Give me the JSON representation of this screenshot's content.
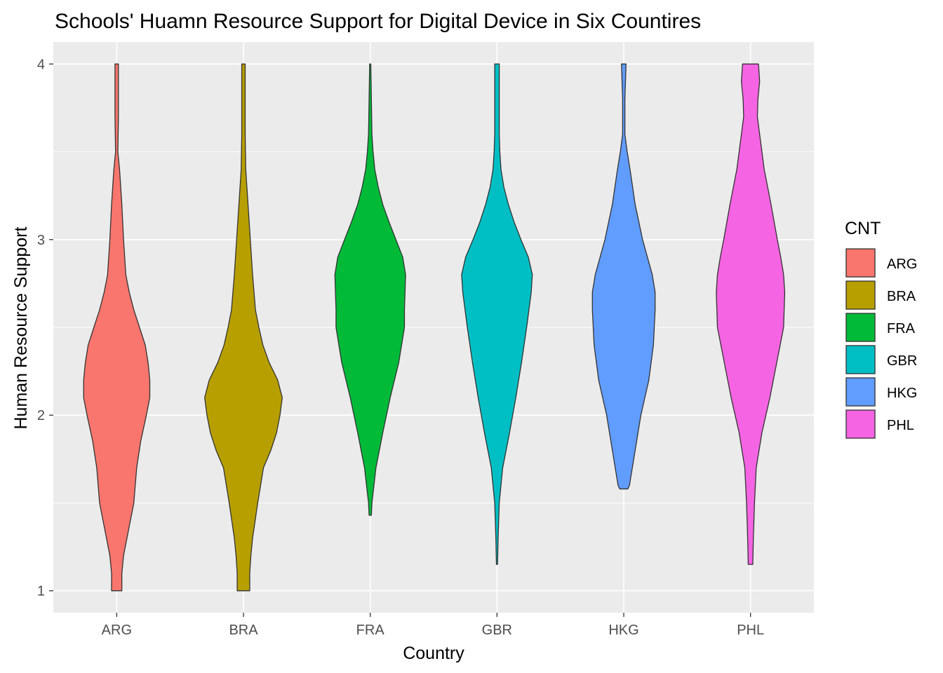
{
  "chart_data": {
    "type": "violin",
    "title": "Schools' Huamn Resource Support for Digital Device in Six Countires",
    "xlabel": "Country",
    "ylabel": "Human Resource Support",
    "categories": [
      "ARG",
      "BRA",
      "FRA",
      "GBR",
      "HKG",
      "PHL"
    ],
    "yticks": [
      1,
      2,
      3,
      4
    ],
    "ylim": [
      0.875,
      4.125
    ],
    "grid": true,
    "legend": {
      "title": "CNT",
      "placement": "right",
      "entries": [
        "ARG",
        "BRA",
        "FRA",
        "GBR",
        "HKG",
        "PHL"
      ]
    },
    "colors": [
      "#F8766D",
      "#B79F00",
      "#00BA38",
      "#00BFC4",
      "#619CFF",
      "#F564E3"
    ],
    "series": [
      {
        "category": "ARG",
        "y": [
          1.0,
          1.1,
          1.2,
          1.3,
          1.5,
          1.7,
          1.85,
          2.0,
          2.1,
          2.2,
          2.3,
          2.4,
          2.5,
          2.6,
          2.7,
          2.8,
          3.0,
          3.2,
          3.4,
          3.5,
          3.7,
          4.0
        ],
        "density": [
          0.09,
          0.09,
          0.12,
          0.18,
          0.3,
          0.35,
          0.42,
          0.52,
          0.58,
          0.58,
          0.55,
          0.5,
          0.4,
          0.3,
          0.22,
          0.16,
          0.12,
          0.09,
          0.05,
          0.02,
          0.03,
          0.03
        ]
      },
      {
        "category": "BRA",
        "y": [
          1.0,
          1.1,
          1.2,
          1.3,
          1.5,
          1.7,
          1.8,
          1.9,
          2.0,
          2.1,
          2.2,
          2.3,
          2.4,
          2.5,
          2.6,
          2.8,
          3.0,
          3.2,
          3.4,
          3.6,
          3.8,
          4.0
        ],
        "density": [
          0.11,
          0.11,
          0.13,
          0.16,
          0.25,
          0.35,
          0.48,
          0.58,
          0.64,
          0.68,
          0.6,
          0.45,
          0.34,
          0.27,
          0.21,
          0.16,
          0.12,
          0.08,
          0.04,
          0.03,
          0.03,
          0.03
        ]
      },
      {
        "category": "FRA",
        "y": [
          1.43,
          1.5,
          1.7,
          1.9,
          2.1,
          2.3,
          2.5,
          2.6,
          2.8,
          2.9,
          3.0,
          3.1,
          3.2,
          3.3,
          3.4,
          3.5,
          3.6,
          3.8,
          4.0
        ],
        "density": [
          0.02,
          0.03,
          0.1,
          0.22,
          0.35,
          0.5,
          0.6,
          0.6,
          0.62,
          0.57,
          0.45,
          0.33,
          0.22,
          0.14,
          0.08,
          0.05,
          0.03,
          0.02,
          0.01
        ]
      },
      {
        "category": "GBR",
        "y": [
          1.15,
          1.3,
          1.5,
          1.7,
          1.9,
          2.1,
          2.3,
          2.5,
          2.7,
          2.8,
          2.9,
          3.0,
          3.1,
          3.2,
          3.3,
          3.4,
          3.5,
          3.6,
          3.8,
          4.0
        ],
        "density": [
          0.01,
          0.02,
          0.04,
          0.1,
          0.22,
          0.33,
          0.43,
          0.52,
          0.6,
          0.62,
          0.55,
          0.42,
          0.3,
          0.2,
          0.12,
          0.07,
          0.05,
          0.04,
          0.04,
          0.04
        ]
      },
      {
        "category": "HKG",
        "y": [
          1.58,
          1.6,
          1.8,
          2.0,
          2.2,
          2.4,
          2.6,
          2.7,
          2.8,
          3.0,
          3.2,
          3.4,
          3.5,
          3.6,
          3.8,
          4.0
        ],
        "density": [
          0.07,
          0.1,
          0.2,
          0.3,
          0.44,
          0.52,
          0.55,
          0.55,
          0.5,
          0.33,
          0.2,
          0.11,
          0.06,
          0.02,
          0.02,
          0.04
        ]
      },
      {
        "category": "PHL",
        "y": [
          1.15,
          1.3,
          1.5,
          1.7,
          1.9,
          2.1,
          2.3,
          2.5,
          2.7,
          2.8,
          2.9,
          3.0,
          3.2,
          3.4,
          3.6,
          3.7,
          3.8,
          3.9,
          4.0
        ],
        "density": [
          0.04,
          0.05,
          0.07,
          0.1,
          0.2,
          0.34,
          0.46,
          0.58,
          0.6,
          0.58,
          0.53,
          0.47,
          0.36,
          0.24,
          0.16,
          0.12,
          0.13,
          0.16,
          0.14
        ]
      }
    ]
  }
}
